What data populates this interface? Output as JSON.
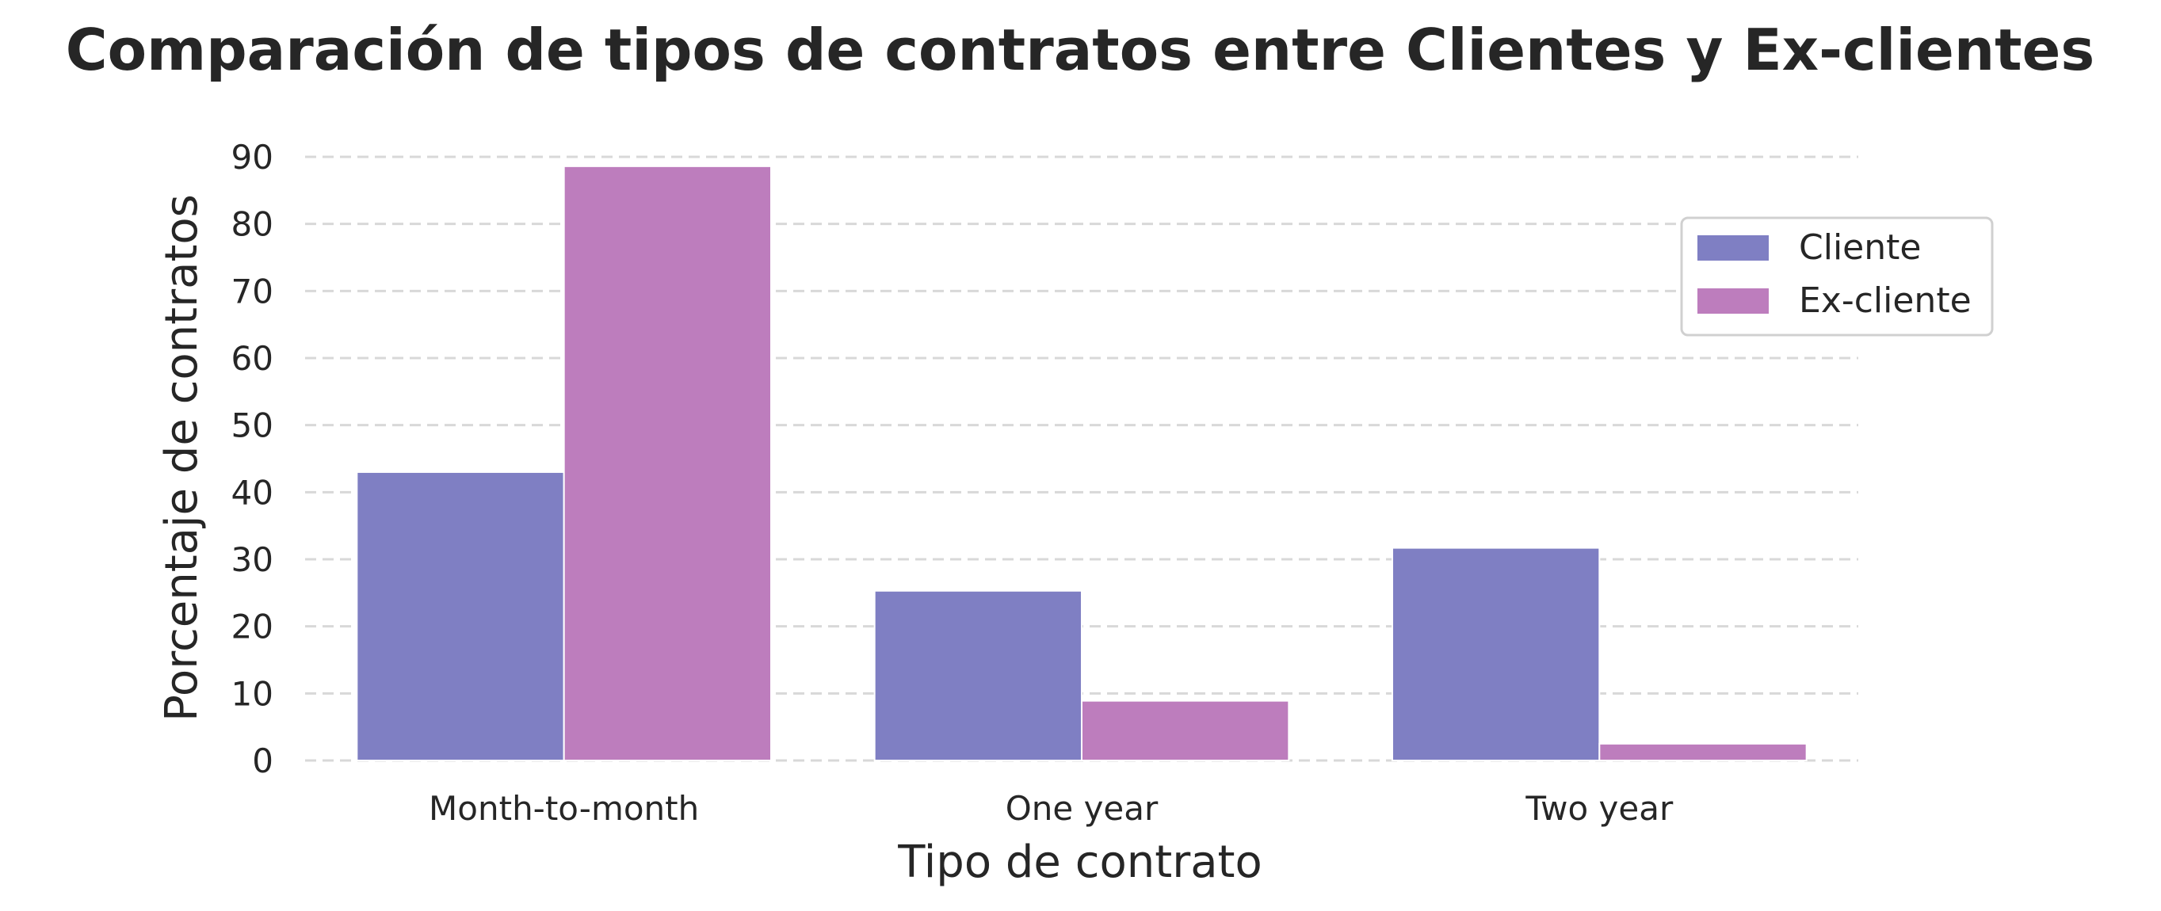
{
  "chart_data": {
    "type": "bar",
    "title": "Comparación de tipos de contratos entre Clientes y Ex-clientes",
    "xlabel": "Tipo de contrato",
    "ylabel": "Porcentaje de contratos",
    "categories": [
      "Month-to-month",
      "One year",
      "Two year"
    ],
    "series": [
      {
        "name": "Cliente",
        "values": [
          43.0,
          25.3,
          31.7
        ],
        "color": "#7f7fc3"
      },
      {
        "name": "Ex-cliente",
        "values": [
          88.6,
          8.9,
          2.5
        ],
        "color": "#bd7dbd"
      }
    ],
    "ylim": [
      0,
      90
    ],
    "yticks": [
      0,
      10,
      20,
      30,
      40,
      50,
      60,
      70,
      80,
      90
    ],
    "grid": "horizontal dashed",
    "legend_position": "upper right"
  }
}
